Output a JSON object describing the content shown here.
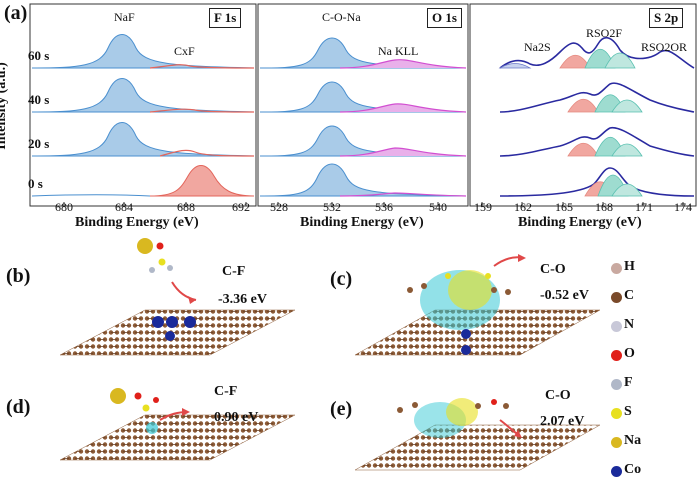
{
  "panel_a": {
    "label": "(a)",
    "ylabel": "Intensity (a.u.)",
    "xlabel": "Binding Energy (eV)",
    "times": [
      "60 s",
      "40 s",
      "20 s",
      "0 s"
    ],
    "spectra": [
      {
        "id": "F1s",
        "title": "F 1s",
        "peak_labels": [
          "NaF",
          "CxF"
        ],
        "ticks": [
          "680",
          "684",
          "688",
          "692"
        ],
        "colors": {
          "main": "#4a8fcf",
          "second": "#e3655b"
        }
      },
      {
        "id": "O1s",
        "title": "O 1s",
        "peak_labels": [
          "C-O-Na",
          "Na KLL"
        ],
        "ticks": [
          "528",
          "532",
          "536",
          "540"
        ],
        "colors": {
          "main": "#4a8fcf",
          "second": "#d24fd1"
        }
      },
      {
        "id": "S2p",
        "title": "S 2p",
        "peak_labels": [
          "Na2S",
          "RSO2F",
          "RSO2OR"
        ],
        "ticks": [
          "159",
          "162",
          "165",
          "168",
          "171",
          "174"
        ],
        "colors": {
          "main": "#2a2aa0",
          "second": "#58c0b0",
          "third": "#e58a80"
        }
      }
    ]
  },
  "panels": [
    {
      "label": "(b)",
      "bond": "C-F",
      "energy": "-3.36 eV"
    },
    {
      "label": "(c)",
      "bond": "C-O",
      "energy": "-0.52 eV"
    },
    {
      "label": "(d)",
      "bond": "C-F",
      "energy": "0.90 eV"
    },
    {
      "label": "(e)",
      "bond": "C-O",
      "energy": "2.07 eV"
    }
  ],
  "legend": [
    {
      "element": "H",
      "color": "#c9a9a0"
    },
    {
      "element": "C",
      "color": "#7a4a2a"
    },
    {
      "element": "N",
      "color": "#c8c8d8"
    },
    {
      "element": "O",
      "color": "#e0201a"
    },
    {
      "element": "F",
      "color": "#b0b8c8"
    },
    {
      "element": "S",
      "color": "#e8e020"
    },
    {
      "element": "Na",
      "color": "#d9b820"
    },
    {
      "element": "Co",
      "color": "#1a2a9a"
    }
  ]
}
